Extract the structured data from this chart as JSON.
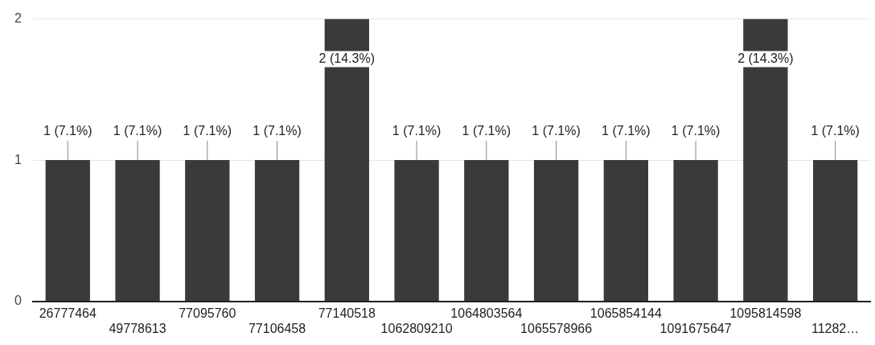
{
  "chart_data": {
    "type": "bar",
    "categories": [
      "26777464",
      "49778613",
      "77095760",
      "77106458",
      "77140518",
      "1062809210",
      "1064803564",
      "1065578966",
      "1065854144",
      "1091675647",
      "1095814598",
      "11282…"
    ],
    "values": [
      1,
      1,
      1,
      1,
      2,
      1,
      1,
      1,
      1,
      1,
      2,
      1
    ],
    "value_labels": [
      "1 (7.1%)",
      "1 (7.1%)",
      "1 (7.1%)",
      "1 (7.1%)",
      "2 (14.3%)",
      "1 (7.1%)",
      "1 (7.1%)",
      "1 (7.1%)",
      "1 (7.1%)",
      "1 (7.1%)",
      "2 (14.3%)",
      "1 (7.1%)"
    ],
    "color": "#3a3a3a",
    "ylim": [
      0,
      2
    ],
    "yticks": [
      0,
      1,
      2
    ],
    "grid": "y",
    "legend": false
  }
}
